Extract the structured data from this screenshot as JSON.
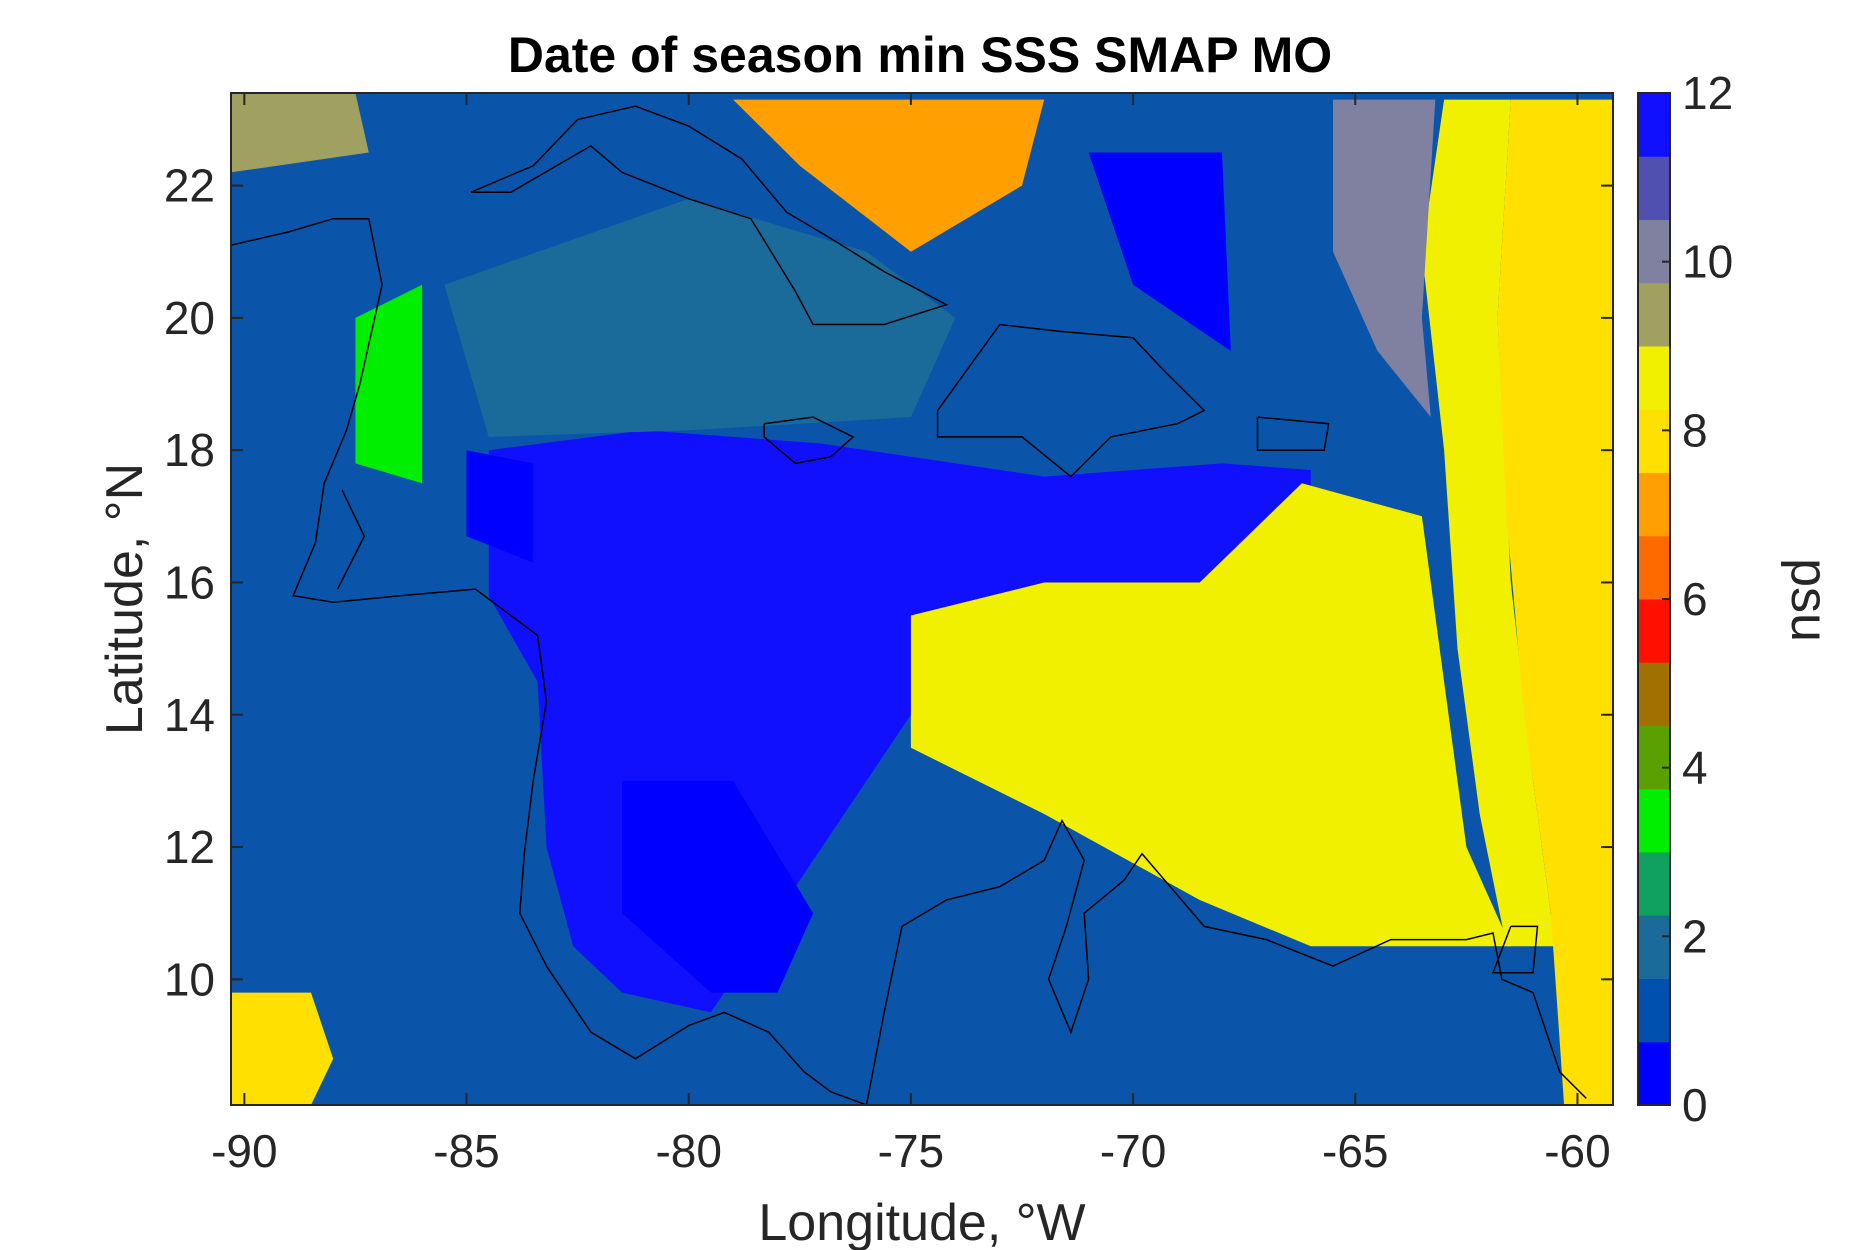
{
  "chart_data": {
    "type": "heatmap",
    "title": "Date of season min SSS SMAP MO",
    "xlabel": "Longitude, °W",
    "ylabel": "Latitude, °N",
    "colorbar_label": "psu",
    "xlim": [
      -90.3,
      -59.2
    ],
    "ylim": [
      8.1,
      23.4
    ],
    "xticks": [
      -90,
      -85,
      -80,
      -75,
      -70,
      -65,
      -60
    ],
    "yticks": [
      10,
      12,
      14,
      16,
      18,
      20,
      22
    ],
    "clim": [
      0,
      12
    ],
    "cticks": [
      0,
      2,
      4,
      6,
      8,
      10,
      12
    ],
    "colormap": [
      "#0000ff",
      "#0050b0",
      "#1a6a9a",
      "#10a060",
      "#00ee00",
      "#5aa000",
      "#a07000",
      "#ff1000",
      "#ff6a00",
      "#ffa000",
      "#ffe000",
      "#f0f000",
      "#a0a060",
      "#8080a0",
      "#5050b0",
      "#1010ff"
    ],
    "land_color": "#0a54aa",
    "regions": [
      {
        "name": "caribbean-basin",
        "value": 11.3,
        "poly": [
          [
            -84.5,
            18
          ],
          [
            -81,
            18.3
          ],
          [
            -77,
            18.1
          ],
          [
            -72,
            17.6
          ],
          [
            -68,
            17.8
          ],
          [
            -66,
            17.7
          ],
          [
            -66,
            16.2
          ],
          [
            -68,
            15.5
          ],
          [
            -70.5,
            15.6
          ],
          [
            -73,
            15
          ],
          [
            -75,
            14
          ],
          [
            -76.5,
            12.5
          ],
          [
            -78,
            11
          ],
          [
            -79.5,
            9.5
          ],
          [
            -81.5,
            9.8
          ],
          [
            -82.6,
            10.5
          ],
          [
            -83.2,
            12
          ],
          [
            -83.4,
            14.5
          ],
          [
            -84.5,
            15.8
          ]
        ]
      },
      {
        "name": "venezuela-plume",
        "value": 8.9,
        "poly": [
          [
            -75,
            15.5
          ],
          [
            -72,
            16
          ],
          [
            -68.5,
            16
          ],
          [
            -66.2,
            17.5
          ],
          [
            -63.5,
            17
          ],
          [
            -63,
            14.5
          ],
          [
            -62.5,
            12
          ],
          [
            -61.5,
            10.5
          ],
          [
            -66,
            10.5
          ],
          [
            -68.5,
            11.2
          ],
          [
            -72,
            12.5
          ],
          [
            -75,
            13.5
          ]
        ]
      },
      {
        "name": "atlantic-east-band",
        "value": 8.7,
        "poly": [
          [
            -63,
            23.3
          ],
          [
            -61.5,
            23.3
          ],
          [
            -61.8,
            20
          ],
          [
            -61.5,
            16
          ],
          [
            -61,
            13
          ],
          [
            -60.5,
            10.5
          ],
          [
            -61.6,
            10.5
          ],
          [
            -62.2,
            12.5
          ],
          [
            -62.7,
            15
          ],
          [
            -63,
            18
          ],
          [
            -63.5,
            21
          ]
        ]
      },
      {
        "name": "atlantic-far-east",
        "value": 7.6,
        "poly": [
          [
            -61.5,
            23.3
          ],
          [
            -59.2,
            23.3
          ],
          [
            -59.2,
            8.1
          ],
          [
            -60.3,
            8.1
          ],
          [
            -60.6,
            11
          ],
          [
            -61.2,
            14
          ],
          [
            -61.6,
            17
          ],
          [
            -61.8,
            20
          ]
        ]
      },
      {
        "name": "atlantic-olive",
        "value": 9.8,
        "poly": [
          [
            -65.5,
            23.3
          ],
          [
            -63.2,
            23.3
          ],
          [
            -63.5,
            20
          ],
          [
            -63.3,
            18.5
          ],
          [
            -64.5,
            19.5
          ],
          [
            -65.5,
            21
          ]
        ]
      },
      {
        "name": "gulf-honduras-green",
        "value": 3.0,
        "poly": [
          [
            -87.5,
            20
          ],
          [
            -86,
            20.5
          ],
          [
            -86,
            17.5
          ],
          [
            -87.5,
            17.8
          ]
        ]
      },
      {
        "name": "nw-caribbean-green",
        "value": 2.2,
        "poly": [
          [
            -85.5,
            20.5
          ],
          [
            -80,
            21.8
          ],
          [
            -76,
            21
          ],
          [
            -74,
            20
          ],
          [
            -75,
            18.5
          ],
          [
            -80,
            18.3
          ],
          [
            -84.5,
            18.2
          ]
        ]
      },
      {
        "name": "bahamas-mix",
        "value": 6.8,
        "poly": [
          [
            -79,
            23.3
          ],
          [
            -72,
            23.3
          ],
          [
            -72.5,
            22
          ],
          [
            -75,
            21
          ],
          [
            -77.5,
            22.3
          ]
        ]
      },
      {
        "name": "honduras-blue",
        "value": 0.3,
        "poly": [
          [
            -85,
            18
          ],
          [
            -83.5,
            17.8
          ],
          [
            -83.5,
            16.3
          ],
          [
            -85,
            16.7
          ]
        ]
      },
      {
        "name": "turks-blue",
        "value": 0.3,
        "poly": [
          [
            -71,
            22.5
          ],
          [
            -68,
            22.5
          ],
          [
            -67.8,
            19.5
          ],
          [
            -70,
            20.5
          ]
        ]
      },
      {
        "name": "pacific-west",
        "value": 7.5,
        "poly": [
          [
            -90.3,
            9.8
          ],
          [
            -88.5,
            9.8
          ],
          [
            -88,
            8.8
          ],
          [
            -88.5,
            8.1
          ],
          [
            -90.3,
            8.1
          ]
        ]
      },
      {
        "name": "mosquitia-blue",
        "value": 0.2,
        "poly": [
          [
            -81.5,
            13
          ],
          [
            -79,
            13
          ],
          [
            -77.2,
            11
          ],
          [
            -78,
            9.8
          ],
          [
            -79.5,
            9.8
          ],
          [
            -81.5,
            11
          ]
        ]
      },
      {
        "name": "mexico-yellow",
        "value": 9.0,
        "poly": [
          [
            -90.3,
            23.4
          ],
          [
            -87.5,
            23.4
          ],
          [
            -87.2,
            22.5
          ],
          [
            -90.3,
            22.2
          ]
        ]
      }
    ],
    "coastlines": [
      [
        [
          -90.3,
          21.1
        ],
        [
          -89,
          21.3
        ],
        [
          -88,
          21.5
        ],
        [
          -87.2,
          21.5
        ],
        [
          -86.9,
          20.5
        ],
        [
          -87.4,
          19
        ],
        [
          -87.7,
          18.3
        ],
        [
          -88.2,
          17.5
        ],
        [
          -88.4,
          16.6
        ],
        [
          -88.9,
          15.8
        ],
        [
          -88,
          15.7
        ],
        [
          -86.5,
          15.8
        ],
        [
          -84.8,
          15.9
        ],
        [
          -83.4,
          15.2
        ],
        [
          -83.2,
          14.2
        ],
        [
          -83.5,
          13
        ],
        [
          -83.7,
          11.9
        ],
        [
          -83.8,
          11
        ],
        [
          -83.2,
          10.2
        ],
        [
          -82.2,
          9.2
        ],
        [
          -81.2,
          8.8
        ],
        [
          -80,
          9.3
        ],
        [
          -79.2,
          9.5
        ],
        [
          -78.2,
          9.2
        ],
        [
          -77.4,
          8.6
        ],
        [
          -76.8,
          8.3
        ],
        [
          -76,
          8.1
        ]
      ],
      [
        [
          -76,
          8.1
        ],
        [
          -75.6,
          9.5
        ],
        [
          -75.2,
          10.8
        ],
        [
          -74.2,
          11.2
        ],
        [
          -73,
          11.4
        ],
        [
          -72,
          11.8
        ],
        [
          -71.6,
          12.4
        ],
        [
          -71.1,
          11.8
        ],
        [
          -71.5,
          10.8
        ],
        [
          -71.9,
          10
        ],
        [
          -71.4,
          9.2
        ],
        [
          -71,
          10
        ],
        [
          -71.1,
          11
        ],
        [
          -70.2,
          11.5
        ],
        [
          -69.8,
          11.9
        ],
        [
          -68.4,
          10.8
        ],
        [
          -67,
          10.6
        ],
        [
          -65.5,
          10.2
        ],
        [
          -64.2,
          10.6
        ],
        [
          -62.5,
          10.6
        ],
        [
          -61.9,
          10.7
        ],
        [
          -61.7,
          10
        ],
        [
          -61,
          9.8
        ],
        [
          -60.4,
          8.6
        ],
        [
          -59.8,
          8.2
        ]
      ],
      [
        [
          -84.9,
          21.9
        ],
        [
          -83.5,
          22.3
        ],
        [
          -82.5,
          23
        ],
        [
          -81.2,
          23.2
        ],
        [
          -80,
          22.9
        ],
        [
          -78.8,
          22.4
        ],
        [
          -77.8,
          21.6
        ],
        [
          -76.8,
          21.2
        ],
        [
          -75.6,
          20.7
        ],
        [
          -74.2,
          20.2
        ],
        [
          -75.6,
          19.9
        ],
        [
          -77.2,
          19.9
        ],
        [
          -77.6,
          20.4
        ],
        [
          -78.6,
          21.5
        ],
        [
          -80,
          21.8
        ],
        [
          -81.5,
          22.2
        ],
        [
          -82.2,
          22.6
        ],
        [
          -84,
          21.9
        ],
        [
          -84.9,
          21.9
        ]
      ],
      [
        [
          -78.3,
          18.4
        ],
        [
          -77.2,
          18.5
        ],
        [
          -76.3,
          18.2
        ],
        [
          -76.8,
          17.9
        ],
        [
          -77.6,
          17.8
        ],
        [
          -78.3,
          18.2
        ],
        [
          -78.3,
          18.4
        ]
      ],
      [
        [
          -74.4,
          18.6
        ],
        [
          -73,
          19.9
        ],
        [
          -71.7,
          19.8
        ],
        [
          -70,
          19.7
        ],
        [
          -69.3,
          19.2
        ],
        [
          -68.4,
          18.6
        ],
        [
          -69,
          18.4
        ],
        [
          -70.5,
          18.2
        ],
        [
          -71.4,
          17.6
        ],
        [
          -72.5,
          18.2
        ],
        [
          -74.4,
          18.2
        ],
        [
          -74.4,
          18.6
        ]
      ],
      [
        [
          -67.2,
          18.5
        ],
        [
          -65.6,
          18.4
        ],
        [
          -65.7,
          18
        ],
        [
          -67.2,
          18
        ],
        [
          -67.2,
          18.5
        ]
      ],
      [
        [
          -61.5,
          10.8
        ],
        [
          -60.9,
          10.8
        ],
        [
          -61,
          10.1
        ],
        [
          -61.9,
          10.1
        ],
        [
          -61.5,
          10.8
        ]
      ],
      [
        [
          -87.9,
          15.9
        ],
        [
          -87.3,
          16.7
        ],
        [
          -87.8,
          17.4
        ]
      ]
    ]
  }
}
